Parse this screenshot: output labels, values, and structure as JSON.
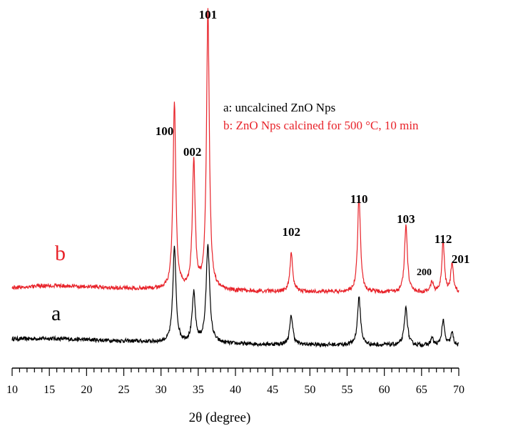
{
  "chart_data": {
    "type": "line",
    "xlabel": "2θ (degree)",
    "ylabel": "",
    "xlim": [
      10,
      70
    ],
    "x_ticks": [
      10,
      15,
      20,
      25,
      30,
      35,
      40,
      45,
      50,
      55,
      60,
      65,
      70
    ],
    "grid": false,
    "legend": {
      "placement": "top-right",
      "entries": [
        {
          "text": "a: uncalcined ZnO Nps",
          "color": "#000000"
        },
        {
          "text": "b: ZnO Nps calcined for 500 °C, 10 min",
          "color": "#e8232a"
        }
      ]
    },
    "curve_tags": [
      {
        "text": "a",
        "color": "#000000"
      },
      {
        "text": "b",
        "color": "#e8232a"
      }
    ],
    "peak_labels": [
      {
        "label": "100",
        "two_theta": 31.8
      },
      {
        "label": "002",
        "two_theta": 34.4
      },
      {
        "label": "101",
        "two_theta": 36.3
      },
      {
        "label": "102",
        "two_theta": 47.5
      },
      {
        "label": "110",
        "two_theta": 56.6
      },
      {
        "label": "103",
        "two_theta": 62.9
      },
      {
        "label": "200",
        "two_theta": 66.4
      },
      {
        "label": "112",
        "two_theta": 67.9
      },
      {
        "label": "201",
        "two_theta": 69.1
      }
    ],
    "series": [
      {
        "name": "a",
        "color": "#000000",
        "baseline": [
          [
            10,
            0.28
          ],
          [
            15,
            0.3
          ],
          [
            20,
            0.25
          ],
          [
            25,
            0.2
          ],
          [
            30,
            0.15
          ],
          [
            35,
            0.12
          ],
          [
            40,
            0.08
          ],
          [
            45,
            0.06
          ],
          [
            50,
            0.05
          ],
          [
            55,
            0.04
          ],
          [
            60,
            0.03
          ],
          [
            65,
            0.02
          ],
          [
            70,
            0.0
          ]
        ],
        "peaks": [
          {
            "two_theta": 31.8,
            "intensity": 3.8,
            "fwhm": 0.5
          },
          {
            "two_theta": 34.4,
            "intensity": 1.95,
            "fwhm": 0.5
          },
          {
            "two_theta": 36.3,
            "intensity": 3.95,
            "fwhm": 0.55
          },
          {
            "two_theta": 47.5,
            "intensity": 1.15,
            "fwhm": 0.5
          },
          {
            "two_theta": 56.6,
            "intensity": 1.9,
            "fwhm": 0.5
          },
          {
            "two_theta": 62.9,
            "intensity": 1.5,
            "fwhm": 0.5
          },
          {
            "two_theta": 66.4,
            "intensity": 0.3,
            "fwhm": 0.4
          },
          {
            "two_theta": 67.9,
            "intensity": 1.0,
            "fwhm": 0.45
          },
          {
            "two_theta": 69.1,
            "intensity": 0.5,
            "fwhm": 0.45
          }
        ]
      },
      {
        "name": "b",
        "color": "#e8232a",
        "baseline": [
          [
            10,
            0.22
          ],
          [
            15,
            0.3
          ],
          [
            20,
            0.25
          ],
          [
            25,
            0.2
          ],
          [
            30,
            0.15
          ],
          [
            35,
            0.12
          ],
          [
            40,
            0.08
          ],
          [
            45,
            0.06
          ],
          [
            50,
            0.05
          ],
          [
            55,
            0.04
          ],
          [
            60,
            0.03
          ],
          [
            65,
            0.02
          ],
          [
            70,
            0.0
          ]
        ],
        "peaks": [
          {
            "two_theta": 31.8,
            "intensity": 7.4,
            "fwhm": 0.45
          },
          {
            "two_theta": 34.4,
            "intensity": 5.1,
            "fwhm": 0.45
          },
          {
            "two_theta": 36.3,
            "intensity": 11.2,
            "fwhm": 0.45
          },
          {
            "two_theta": 47.5,
            "intensity": 1.5,
            "fwhm": 0.45
          },
          {
            "two_theta": 56.6,
            "intensity": 3.9,
            "fwhm": 0.45
          },
          {
            "two_theta": 62.9,
            "intensity": 2.7,
            "fwhm": 0.45
          },
          {
            "two_theta": 66.4,
            "intensity": 0.45,
            "fwhm": 0.4
          },
          {
            "two_theta": 67.9,
            "intensity": 2.1,
            "fwhm": 0.4
          },
          {
            "two_theta": 69.1,
            "intensity": 1.2,
            "fwhm": 0.4
          }
        ]
      }
    ]
  }
}
